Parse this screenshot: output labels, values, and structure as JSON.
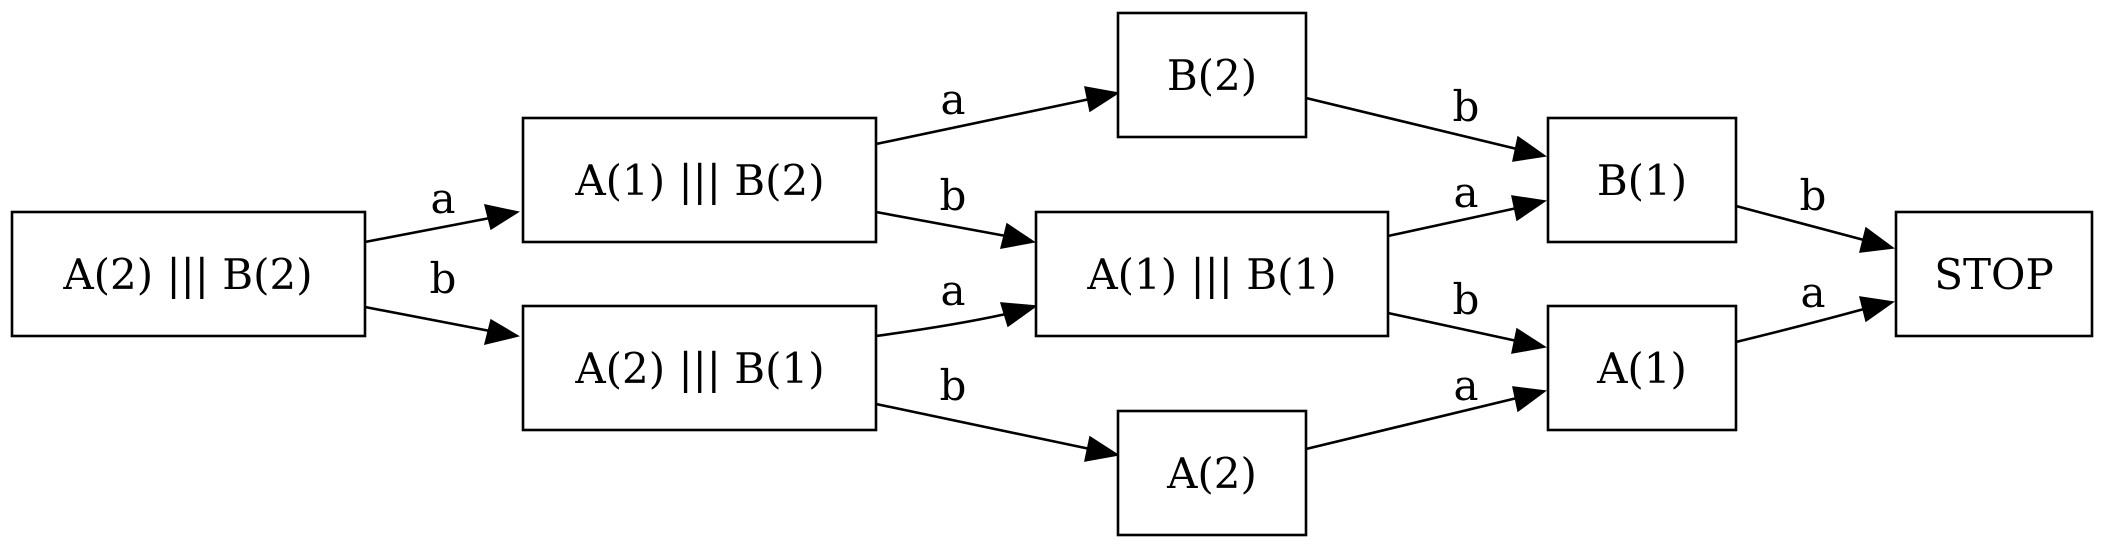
{
  "diagram": {
    "nodes": [
      {
        "id": "n1",
        "label": "A(2) ||| B(2)"
      },
      {
        "id": "n2",
        "label": "A(1) ||| B(2)"
      },
      {
        "id": "n3",
        "label": "A(2) ||| B(1)"
      },
      {
        "id": "n4",
        "label": "B(2)"
      },
      {
        "id": "n5",
        "label": "A(1) ||| B(1)"
      },
      {
        "id": "n6",
        "label": "A(2)"
      },
      {
        "id": "n7",
        "label": "B(1)"
      },
      {
        "id": "n8",
        "label": "A(1)"
      },
      {
        "id": "n9",
        "label": "STOP"
      }
    ],
    "edges": [
      {
        "id": "e1",
        "from": "n1",
        "to": "n2",
        "label": "a"
      },
      {
        "id": "e2",
        "from": "n1",
        "to": "n3",
        "label": "b"
      },
      {
        "id": "e3",
        "from": "n2",
        "to": "n4",
        "label": "a"
      },
      {
        "id": "e4",
        "from": "n2",
        "to": "n5",
        "label": "b"
      },
      {
        "id": "e5",
        "from": "n3",
        "to": "n5",
        "label": "a"
      },
      {
        "id": "e6",
        "from": "n3",
        "to": "n6",
        "label": "b"
      },
      {
        "id": "e7",
        "from": "n4",
        "to": "n7",
        "label": "b"
      },
      {
        "id": "e8",
        "from": "n5",
        "to": "n7",
        "label": "a"
      },
      {
        "id": "e9",
        "from": "n5",
        "to": "n8",
        "label": "b"
      },
      {
        "id": "e10",
        "from": "n6",
        "to": "n8",
        "label": "a"
      },
      {
        "id": "e11",
        "from": "n7",
        "to": "n9",
        "label": "b"
      },
      {
        "id": "e12",
        "from": "n8",
        "to": "n9",
        "label": "a"
      }
    ]
  }
}
